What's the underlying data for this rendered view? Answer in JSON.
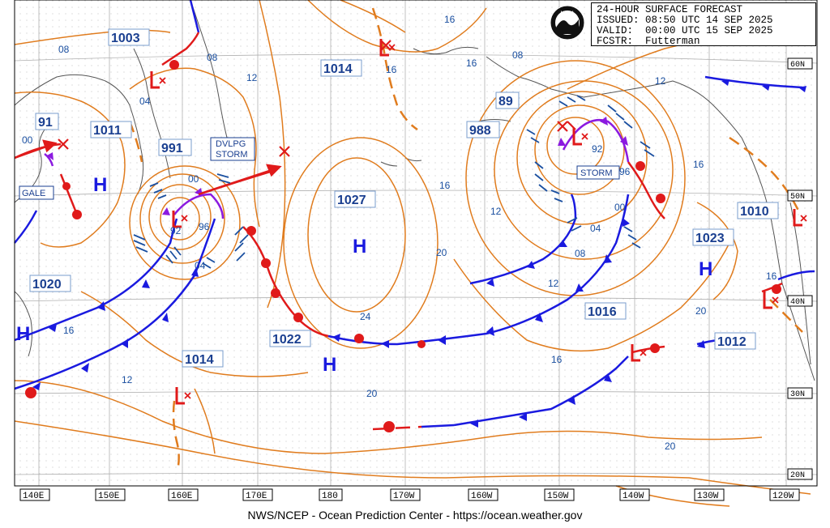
{
  "header": {
    "product": "24-HOUR SURFACE FORECAST",
    "issued_label": "ISSUED:",
    "issued": "08:50 UTC 14 SEP 2025",
    "valid_label": "VALID:",
    "valid": "00:00 UTC 15 SEP 2025",
    "forecaster_label": "FCSTR:",
    "forecaster": "Futterman",
    "logo_text": "NOAA"
  },
  "footer": "NWS/NCEP - Ocean Prediction Center - https://ocean.weather.gov",
  "longitude_labels": [
    "140E",
    "150E",
    "160E",
    "170E",
    "180",
    "170W",
    "160W",
    "150W",
    "140W",
    "130W",
    "120W"
  ],
  "latitude_labels": [
    "60N",
    "50N",
    "40N",
    "30N",
    "20N"
  ],
  "pressure_centers": [
    {
      "type": "L",
      "value": "1003"
    },
    {
      "type": "L",
      "value": "1011"
    },
    {
      "type": "L",
      "value": "991"
    },
    {
      "type": "L",
      "value": "1014"
    },
    {
      "type": "H",
      "value": "1027"
    },
    {
      "type": "H",
      "value": "1022"
    },
    {
      "type": "L",
      "value": "988"
    },
    {
      "type": "L",
      "value": "89"
    },
    {
      "type": "L",
      "value": "91"
    },
    {
      "type": "H",
      "value": "1020"
    },
    {
      "type": "L",
      "value": "1014"
    },
    {
      "type": "H",
      "value": "1023"
    },
    {
      "type": "L",
      "value": "1010"
    },
    {
      "type": "H",
      "value": "1016"
    },
    {
      "type": "L",
      "value": "1012"
    }
  ],
  "warnings": {
    "gale": "GALE",
    "dvlpg_storm_1": "DVLPG",
    "dvlpg_storm_2": "STORM",
    "storm": "STORM"
  },
  "isobar_labels": [
    "08",
    "04",
    "00",
    "96",
    "92",
    "12",
    "16",
    "20",
    "24",
    "08",
    "04",
    "00",
    "96",
    "92",
    "12",
    "16",
    "20",
    "16",
    "12",
    "08",
    "16",
    "16",
    "20",
    "16",
    "12",
    "08",
    "04",
    "00",
    "16",
    "12",
    "16",
    "20"
  ],
  "colors": {
    "isobar": "#e07c1e",
    "cold_front": "#1a1adf",
    "warm_front": "#e01a1a",
    "occluded_front": "#8b1ae0",
    "label_text": "#1a4fa0",
    "grid": "#b8b8b8",
    "coast": "#444444"
  }
}
